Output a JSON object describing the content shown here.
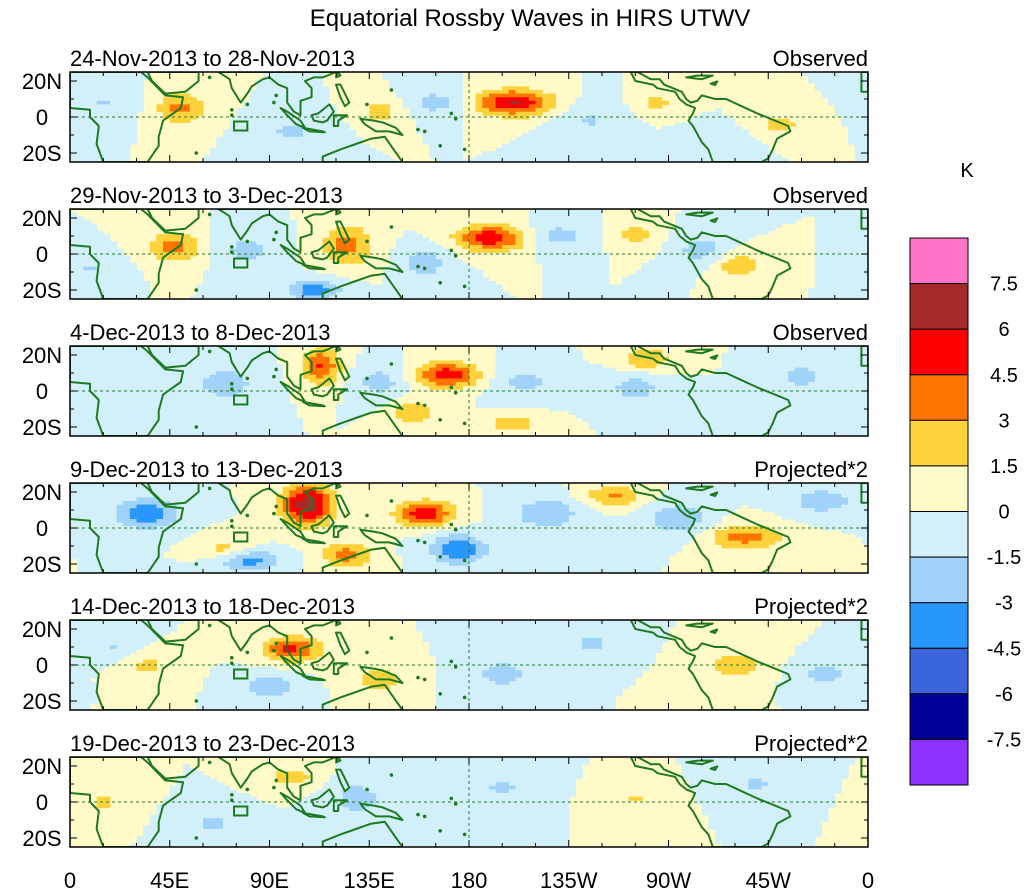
{
  "chart_data": {
    "type": "heatmap",
    "title": "Equatorial Rossby Waves in HIRS UTWV",
    "variable": "HIRS UTWV anomaly",
    "units": "K",
    "x_ticks": [
      "0",
      "45E",
      "90E",
      "135E",
      "180",
      "135W",
      "90W",
      "45W",
      "0"
    ],
    "x_range": [
      0,
      360
    ],
    "y_ticks": [
      "20N",
      "0",
      "20S"
    ],
    "y_range": [
      -25,
      25
    ],
    "colorbar": {
      "label": "K",
      "levels": [
        "7.5",
        "6",
        "4.5",
        "3",
        "1.5",
        "0",
        "-1.5",
        "-3",
        "-4.5",
        "-6",
        "-7.5"
      ],
      "colors": [
        "#ff73c8",
        "#a52a2a",
        "#ff0000",
        "#ff7300",
        "#ffd23c",
        "#fffac8",
        "#d2f0fa",
        "#a0d2fa",
        "#2896fa",
        "#3c64dc",
        "#000096",
        "#8c32ff"
      ]
    },
    "panels": [
      {
        "date_range": "24-Nov-2013 to 28-Nov-2013",
        "label": "Observed",
        "features": [
          {
            "lon": 200,
            "lat": 8,
            "amp": 6.2,
            "sx": 12,
            "sy": 5
          },
          {
            "lon": 50,
            "lat": 5,
            "amp": 3.4,
            "sx": 8,
            "sy": 6
          },
          {
            "lon": 140,
            "lat": 3,
            "amp": 2.2,
            "sx": 7,
            "sy": 5
          },
          {
            "lon": 320,
            "lat": -4,
            "amp": 2.0,
            "sx": 8,
            "sy": 5
          },
          {
            "lon": 265,
            "lat": 8,
            "amp": 1.8,
            "sx": 7,
            "sy": 5
          },
          {
            "lon": 165,
            "lat": 8,
            "amp": -2.2,
            "sx": 9,
            "sy": 5
          },
          {
            "lon": 100,
            "lat": -8,
            "amp": -1.8,
            "sx": 10,
            "sy": 6
          },
          {
            "lon": 235,
            "lat": -2,
            "amp": -1.6,
            "sx": 10,
            "sy": 7
          },
          {
            "lon": 15,
            "lat": 8,
            "amp": -1.6,
            "sx": 9,
            "sy": 6
          },
          {
            "lon": 290,
            "lat": -14,
            "amp": -1.5,
            "sx": 10,
            "sy": 5
          }
        ]
      },
      {
        "date_range": "29-Nov-2013 to 3-Dec-2013",
        "label": "Observed",
        "features": [
          {
            "lon": 190,
            "lat": 9,
            "amp": 5.6,
            "sx": 11,
            "sy": 5
          },
          {
            "lon": 47,
            "lat": 4,
            "amp": 3.5,
            "sx": 8,
            "sy": 6
          },
          {
            "lon": 125,
            "lat": 5,
            "amp": 3.6,
            "sx": 8,
            "sy": 8
          },
          {
            "lon": 300,
            "lat": -6,
            "amp": 2.6,
            "sx": 8,
            "sy": 5
          },
          {
            "lon": 255,
            "lat": 11,
            "amp": 2.0,
            "sx": 7,
            "sy": 5
          },
          {
            "lon": 110,
            "lat": -20,
            "amp": -3.8,
            "sx": 9,
            "sy": 4
          },
          {
            "lon": 220,
            "lat": 10,
            "amp": -2.2,
            "sx": 10,
            "sy": 5
          },
          {
            "lon": 160,
            "lat": -5,
            "amp": -2.6,
            "sx": 7,
            "sy": 6
          },
          {
            "lon": 80,
            "lat": 2,
            "amp": -2.0,
            "sx": 9,
            "sy": 7
          },
          {
            "lon": 285,
            "lat": 2,
            "amp": -2.4,
            "sx": 8,
            "sy": 6
          },
          {
            "lon": 10,
            "lat": -8,
            "amp": -1.6,
            "sx": 8,
            "sy": 5
          }
        ]
      },
      {
        "date_range": "4-Dec-2013 to 8-Dec-2013",
        "label": "Observed",
        "features": [
          {
            "lon": 170,
            "lat": 9,
            "amp": 5.4,
            "sx": 10,
            "sy": 5
          },
          {
            "lon": 113,
            "lat": 14,
            "amp": 4.6,
            "sx": 6,
            "sy": 7
          },
          {
            "lon": 155,
            "lat": -12,
            "amp": 2.6,
            "sx": 7,
            "sy": 5
          },
          {
            "lon": 260,
            "lat": 18,
            "amp": 2.8,
            "sx": 8,
            "sy": 5
          },
          {
            "lon": 200,
            "lat": -18,
            "amp": 2.4,
            "sx": 8,
            "sy": 4
          },
          {
            "lon": 70,
            "lat": 4,
            "amp": -2.4,
            "sx": 10,
            "sy": 7
          },
          {
            "lon": 140,
            "lat": 5,
            "amp": -2.2,
            "sx": 8,
            "sy": 6
          },
          {
            "lon": 205,
            "lat": 5,
            "amp": -2.0,
            "sx": 10,
            "sy": 6
          },
          {
            "lon": 255,
            "lat": 2,
            "amp": -2.2,
            "sx": 9,
            "sy": 6
          },
          {
            "lon": 330,
            "lat": 8,
            "amp": -2.0,
            "sx": 9,
            "sy": 6
          }
        ]
      },
      {
        "date_range": "9-Dec-2013 to 13-Dec-2013",
        "label": "Projected*2",
        "features": [
          {
            "lon": 107,
            "lat": 13,
            "amp": 7.0,
            "sx": 8,
            "sy": 8
          },
          {
            "lon": 160,
            "lat": 8,
            "amp": 5.5,
            "sx": 9,
            "sy": 5
          },
          {
            "lon": 125,
            "lat": -15,
            "amp": 3.6,
            "sx": 8,
            "sy": 5
          },
          {
            "lon": 305,
            "lat": -5,
            "amp": 3.6,
            "sx": 12,
            "sy": 5
          },
          {
            "lon": 245,
            "lat": 18,
            "amp": 3.2,
            "sx": 9,
            "sy": 4
          },
          {
            "lon": 70,
            "lat": -12,
            "amp": 2.2,
            "sx": 8,
            "sy": 5
          },
          {
            "lon": 35,
            "lat": 8,
            "amp": -4.2,
            "sx": 10,
            "sy": 6
          },
          {
            "lon": 80,
            "lat": -18,
            "amp": -4.0,
            "sx": 10,
            "sy": 4
          },
          {
            "lon": 175,
            "lat": -12,
            "amp": -4.2,
            "sx": 9,
            "sy": 6
          },
          {
            "lon": 215,
            "lat": 8,
            "amp": -3.0,
            "sx": 10,
            "sy": 6
          },
          {
            "lon": 275,
            "lat": 5,
            "amp": -3.0,
            "sx": 9,
            "sy": 6
          },
          {
            "lon": 340,
            "lat": 15,
            "amp": -2.6,
            "sx": 10,
            "sy": 5
          }
        ]
      },
      {
        "date_range": "14-Dec-2013 to 18-Dec-2013",
        "label": "Projected*2",
        "features": [
          {
            "lon": 100,
            "lat": 9,
            "amp": 4.8,
            "sx": 9,
            "sy": 5
          },
          {
            "lon": 140,
            "lat": -8,
            "amp": 2.4,
            "sx": 8,
            "sy": 5
          },
          {
            "lon": 300,
            "lat": 0,
            "amp": 2.2,
            "sx": 10,
            "sy": 6
          },
          {
            "lon": 35,
            "lat": 0,
            "amp": 1.8,
            "sx": 8,
            "sy": 6
          },
          {
            "lon": 90,
            "lat": -12,
            "amp": -2.6,
            "sx": 8,
            "sy": 5
          },
          {
            "lon": 195,
            "lat": -5,
            "amp": -2.4,
            "sx": 9,
            "sy": 6
          },
          {
            "lon": 235,
            "lat": 12,
            "amp": -1.8,
            "sx": 9,
            "sy": 5
          },
          {
            "lon": 340,
            "lat": -5,
            "amp": -2.0,
            "sx": 9,
            "sy": 5
          },
          {
            "lon": 20,
            "lat": 10,
            "amp": -1.6,
            "sx": 9,
            "sy": 5
          }
        ]
      },
      {
        "date_range": "19-Dec-2013 to 23-Dec-2013",
        "label": "Projected*2",
        "features": [
          {
            "lon": 100,
            "lat": 14,
            "amp": 2.4,
            "sx": 7,
            "sy": 4
          },
          {
            "lon": 15,
            "lat": 0,
            "amp": 1.8,
            "sx": 7,
            "sy": 5
          },
          {
            "lon": 255,
            "lat": 2,
            "amp": 1.6,
            "sx": 8,
            "sy": 5
          },
          {
            "lon": 130,
            "lat": 2,
            "amp": -2.6,
            "sx": 8,
            "sy": 6
          },
          {
            "lon": 65,
            "lat": -12,
            "amp": -1.8,
            "sx": 8,
            "sy": 5
          },
          {
            "lon": 195,
            "lat": 8,
            "amp": -1.7,
            "sx": 9,
            "sy": 6
          },
          {
            "lon": 310,
            "lat": 10,
            "amp": -1.7,
            "sx": 9,
            "sy": 5
          }
        ]
      }
    ]
  }
}
